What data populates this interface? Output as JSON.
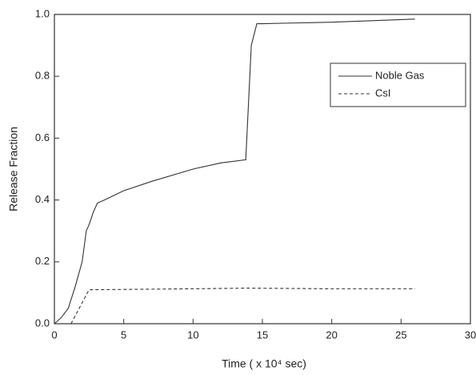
{
  "chart_data": {
    "type": "line",
    "xlabel": "Time ( x 10⁴ sec)",
    "ylabel": "Release Fraction",
    "xlim": [
      0,
      30
    ],
    "xticks": [
      0,
      5,
      10,
      15,
      20,
      25,
      30
    ],
    "ylim": [
      0,
      1
    ],
    "yticks": [
      {
        "value": 0,
        "label": "0.0"
      },
      0.2,
      0.4,
      0.6,
      0.8,
      {
        "value": 1,
        "label": "1.0"
      }
    ],
    "legend": "upper right",
    "series": [
      {
        "name": "Noble Gas",
        "color": "#333333",
        "dash": "solid",
        "x": [
          0,
          0.5,
          1,
          1.5,
          2,
          2.3,
          2.5,
          2.8,
          3.1,
          3.6,
          5,
          7,
          10,
          12,
          13.8,
          14.2,
          14.6,
          15,
          20,
          26
        ],
        "values": [
          0,
          0.02,
          0.05,
          0.12,
          0.2,
          0.3,
          0.32,
          0.36,
          0.39,
          0.4,
          0.43,
          0.46,
          0.5,
          0.52,
          0.53,
          0.9,
          0.97,
          0.97,
          0.975,
          0.985
        ]
      },
      {
        "name": "CsI",
        "color": "#333333",
        "dash": "dashed",
        "x": [
          1.2,
          2.5,
          3,
          10,
          14,
          20,
          26
        ],
        "values": [
          0,
          0.11,
          0.11,
          0.113,
          0.115,
          0.113,
          0.113
        ]
      }
    ]
  }
}
